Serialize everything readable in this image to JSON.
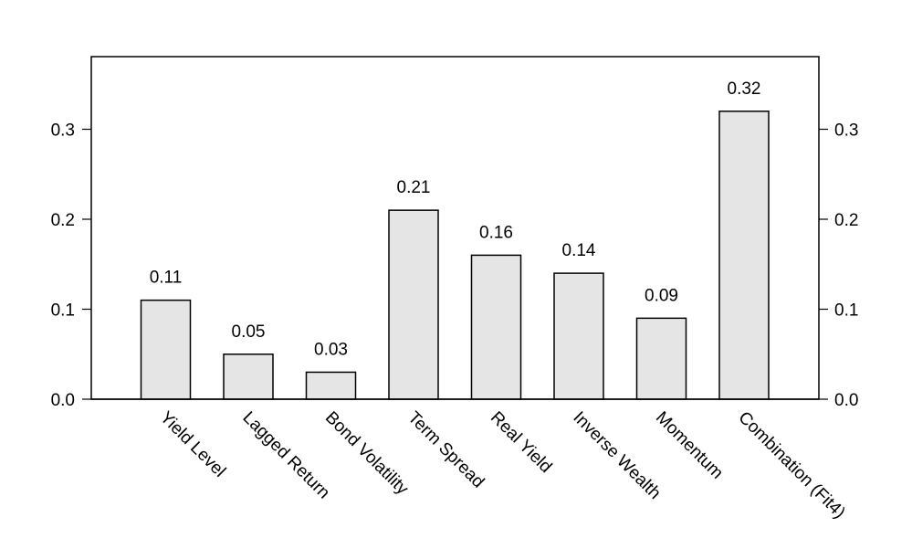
{
  "chart_data": {
    "type": "bar",
    "title": "",
    "xlabel": "",
    "ylabel": "",
    "categories": [
      "Yield Level",
      "Lagged Return",
      "Bond Volatility",
      "Term Spread",
      "Real Yield",
      "Inverse Wealth",
      "Momentum",
      "Combination (Fit4)"
    ],
    "values": [
      0.11,
      0.05,
      0.03,
      0.21,
      0.16,
      0.14,
      0.09,
      0.32
    ],
    "data_labels": [
      "0.11",
      "0.05",
      "0.03",
      "0.21",
      "0.16",
      "0.14",
      "0.09",
      "0.32"
    ],
    "ylim": [
      0,
      0.35
    ],
    "yticks": [
      0.0,
      0.1,
      0.2,
      0.3
    ],
    "ytick_labels": [
      "0.0",
      "0.1",
      "0.2",
      "0.3"
    ],
    "y_axis_sides": [
      "left",
      "right"
    ],
    "grid": false,
    "legend": "none",
    "bar_fill": "#e5e5e5",
    "bar_stroke": "#000000"
  }
}
